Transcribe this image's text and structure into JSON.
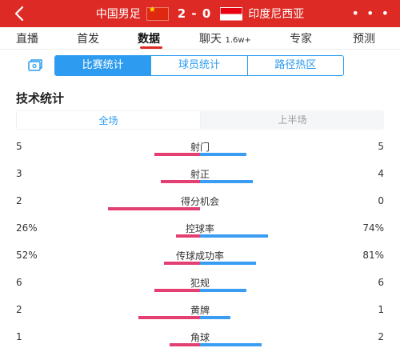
{
  "header": {
    "home_team": "中国男足",
    "score": "2 - 0",
    "away_team": "印度尼西亚",
    "more": "• • •",
    "bg_color": "#dd2a24"
  },
  "tabs": [
    {
      "label": "直播"
    },
    {
      "label": "首发"
    },
    {
      "label": "数据",
      "active": true
    },
    {
      "label": "聊天",
      "badge": "1.6w+"
    },
    {
      "label": "专家"
    },
    {
      "label": "预测"
    }
  ],
  "sub_tabs": [
    "比赛统计",
    "球员统计",
    "路径热区"
  ],
  "section_title": "技术统计",
  "period_tabs": [
    "全场",
    "上半场"
  ],
  "colors": {
    "home_bar": "#e43f73",
    "away_bar": "#3a9df2",
    "accent": "#2d9bf0"
  },
  "stats": [
    {
      "name": "射门",
      "home": "5",
      "away": "5",
      "home_share": 0.5,
      "away_share": 0.5
    },
    {
      "name": "射正",
      "home": "3",
      "away": "4",
      "home_share": 0.43,
      "away_share": 0.57
    },
    {
      "name": "得分机会",
      "home": "2",
      "away": "0",
      "home_share": 1.0,
      "away_share": 0.0
    },
    {
      "name": "控球率",
      "home": "26%",
      "away": "74%",
      "home_share": 0.26,
      "away_share": 0.74
    },
    {
      "name": "传球成功率",
      "home": "52%",
      "away": "81%",
      "home_share": 0.39,
      "away_share": 0.61
    },
    {
      "name": "犯规",
      "home": "6",
      "away": "6",
      "home_share": 0.5,
      "away_share": 0.5
    },
    {
      "name": "黄牌",
      "home": "2",
      "away": "1",
      "home_share": 0.67,
      "away_share": 0.33
    },
    {
      "name": "角球",
      "home": "1",
      "away": "2",
      "home_share": 0.33,
      "away_share": 0.67
    }
  ]
}
